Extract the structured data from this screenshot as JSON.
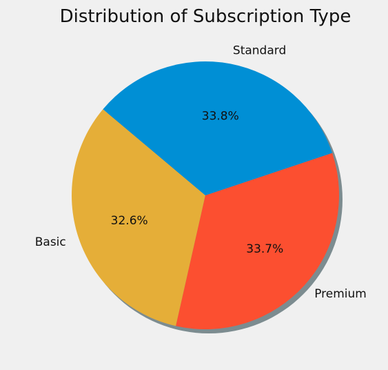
{
  "chart_data": {
    "type": "pie",
    "title": "Distribution of Subscription Type",
    "slices": [
      {
        "label": "Basic",
        "value": 32.6,
        "pct_label": "32.6%",
        "color": "#e5ae38"
      },
      {
        "label": "Premium",
        "value": 33.7,
        "pct_label": "33.7%",
        "color": "#fc4f30"
      },
      {
        "label": "Standard",
        "value": 33.8,
        "pct_label": "33.8%",
        "color": "#008fd5"
      }
    ],
    "shadow": true,
    "legend": "none"
  }
}
